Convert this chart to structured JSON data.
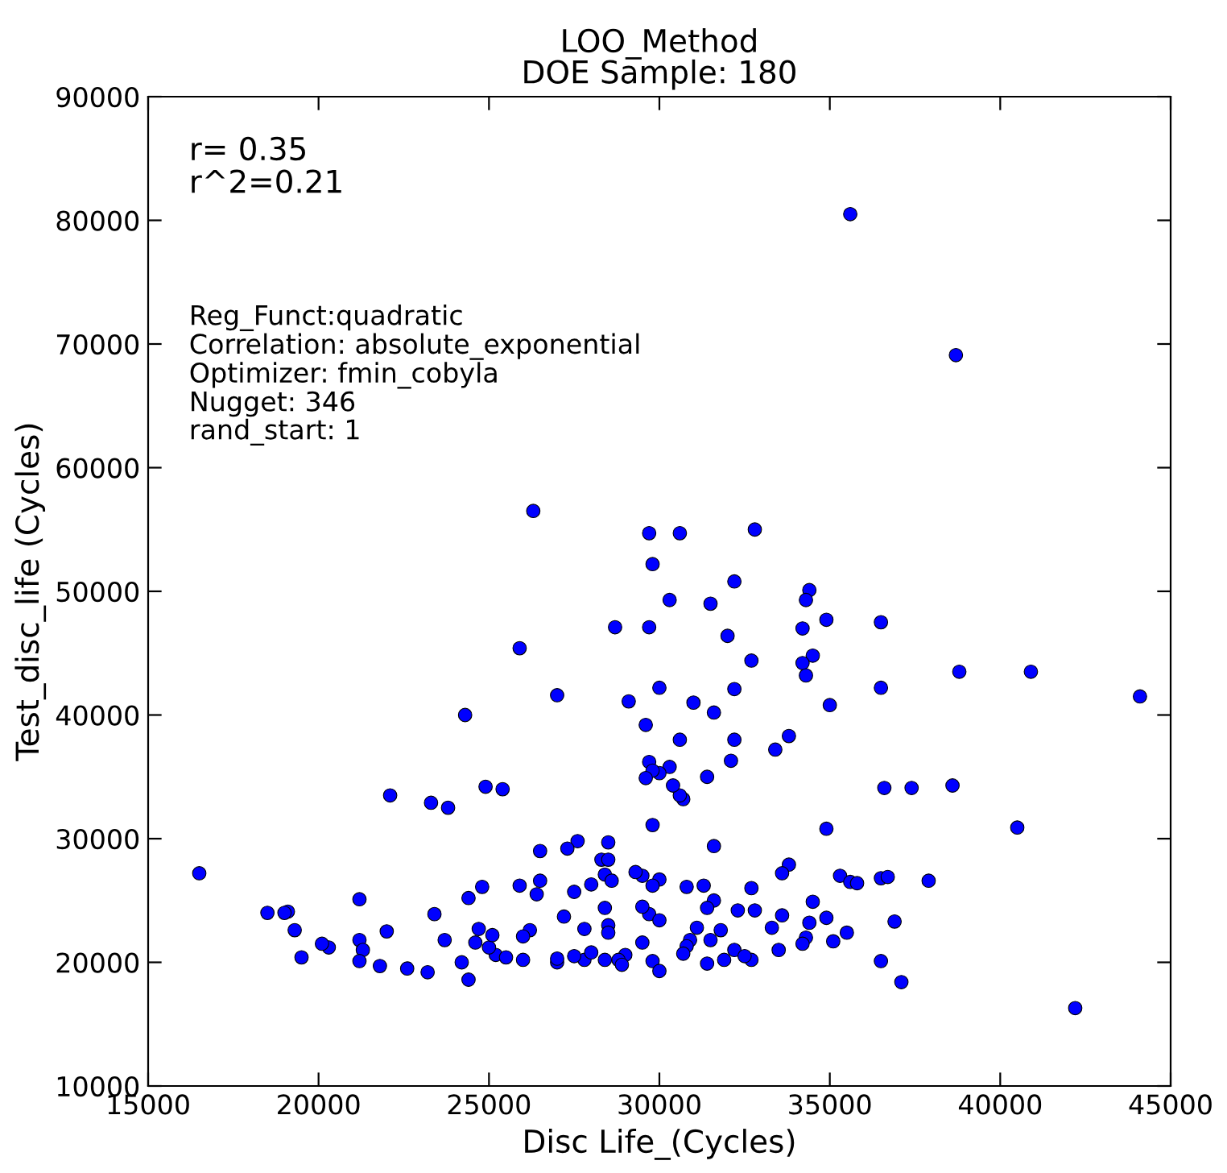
{
  "chart_data": {
    "type": "scatter",
    "title": "LOO_Method\nDOE Sample: 180",
    "xlabel": "Disc Life_(Cycles)",
    "ylabel": "Test_disc_life (Cycles)",
    "annotations": [
      "r= 0.35\nr^2=0.21",
      "Reg_Funct:quadratic\nCorrelation: absolute_exponential\nOptimizer: fmin_cobyla\nNugget: 346\nrand_start: 1"
    ],
    "xlim": [
      15000,
      45000
    ],
    "xticks": [
      15000,
      20000,
      25000,
      30000,
      35000,
      40000,
      45000
    ],
    "ylim": [
      10000,
      90000
    ],
    "yticks": [
      10000,
      20000,
      30000,
      40000,
      50000,
      60000,
      70000,
      80000,
      90000
    ],
    "grid": false,
    "marker": "circle",
    "series": [
      {
        "color": "#0000ff",
        "x": [
          16500,
          35600,
          38700,
          44100,
          42200,
          40900,
          40500,
          38600,
          38800,
          37400,
          37900,
          37100,
          36900,
          36500,
          36500,
          36600,
          36500,
          36700,
          36500,
          35500,
          35300,
          35600,
          35800,
          35000,
          34900,
          34900,
          34900,
          34400,
          34300,
          34200,
          34500,
          34200,
          34300,
          34500,
          34400,
          34300,
          34200,
          33800,
          33600,
          33800,
          33600,
          33400,
          32800,
          32700,
          32700,
          32800,
          32700,
          32200,
          32200,
          32200,
          32100,
          32000,
          32300,
          32200,
          31800,
          31900,
          31500,
          31600,
          31600,
          31600,
          31400,
          31400,
          31500,
          31400,
          31100,
          31000,
          30800,
          30600,
          30600,
          30700,
          30600,
          30400,
          30300,
          30300,
          30000,
          30000,
          29700,
          29700,
          29800,
          29600,
          29700,
          29800,
          29600,
          29800,
          30000,
          29800,
          29500,
          29300,
          29100,
          28700,
          28300,
          28500,
          28500,
          28400,
          28600,
          28400,
          28500,
          28500,
          28000,
          27600,
          27300,
          27000,
          27200,
          27000,
          26500,
          26300,
          26500,
          26400,
          26200,
          26000,
          25900,
          25900,
          25400,
          25200,
          25500,
          24900,
          24700,
          24800,
          24300,
          24400,
          24600,
          24400,
          24200,
          23800,
          23700,
          23300,
          23400,
          23200,
          22600,
          22100,
          22000,
          21800,
          21200,
          21200,
          21300,
          21200,
          20300,
          20100,
          19500,
          19300,
          19100,
          19000,
          18500,
          29700,
          29500,
          29000,
          28800,
          28900,
          28400,
          27800,
          27500,
          27000,
          29800,
          30000,
          30900,
          30800,
          31300,
          32500,
          33500,
          33300,
          35100,
          25000,
          26000,
          25100,
          28000,
          29500,
          30000,
          30700,
          27500,
          27800
        ],
        "values": [
          27200,
          80500,
          69100,
          41500,
          16300,
          43500,
          30900,
          34300,
          43500,
          34100,
          26600,
          18400,
          23300,
          47500,
          42200,
          34100,
          26800,
          26900,
          20100,
          22400,
          27000,
          26500,
          26400,
          40800,
          47700,
          30800,
          23600,
          50100,
          49300,
          47000,
          44800,
          44200,
          43200,
          24900,
          23200,
          22000,
          21500,
          38300,
          23800,
          27900,
          27200,
          37200,
          55000,
          44400,
          26000,
          24200,
          20200,
          50800,
          42100,
          38000,
          36300,
          46400,
          24200,
          21000,
          22600,
          20200,
          49000,
          40200,
          29400,
          25000,
          24400,
          35000,
          21800,
          19900,
          22800,
          41000,
          26100,
          54700,
          38000,
          33200,
          33500,
          34300,
          35800,
          49300,
          42200,
          35300,
          54700,
          47100,
          52200,
          39200,
          36200,
          35500,
          34900,
          31100,
          26700,
          26200,
          27000,
          27300,
          41100,
          47100,
          28300,
          28300,
          29700,
          27100,
          26600,
          24400,
          23000,
          22400,
          26300,
          29800,
          29200,
          41600,
          23700,
          20000,
          29000,
          56500,
          26600,
          25500,
          22600,
          22100,
          45400,
          26200,
          34000,
          20600,
          20400,
          34200,
          22700,
          26100,
          40000,
          25200,
          21600,
          18600,
          20000,
          32500,
          21800,
          32900,
          23900,
          19200,
          19500,
          33500,
          22500,
          19700,
          25100,
          21800,
          21000,
          20100,
          21200,
          21500,
          20400,
          22600,
          24100,
          24000,
          24000,
          23900,
          24500,
          20600,
          20200,
          19800,
          20200,
          20200,
          20500,
          20300,
          20100,
          19300,
          21800,
          21300,
          26200,
          20500,
          21000,
          22800,
          21700,
          21200,
          20200,
          22200,
          20800,
          21600,
          23400,
          20700,
          25700,
          22700
        ]
      }
    ]
  }
}
